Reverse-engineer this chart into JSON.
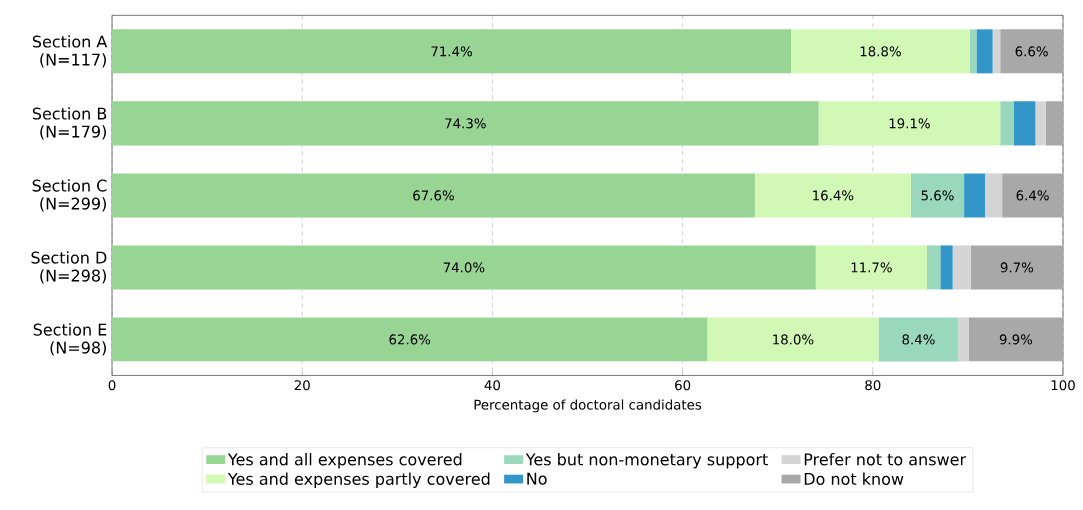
{
  "chart_data": {
    "type": "bar",
    "orientation": "horizontal",
    "stacked": true,
    "categories": [
      "Section A\n(N=117)",
      "Section B\n(N=179)",
      "Section C\n(N=299)",
      "Section D\n(N=298)",
      "Section E\n(N=98)"
    ],
    "xlabel": "Percentage of doctoral candidates",
    "xlim": [
      0,
      100
    ],
    "xticks": [
      0,
      20,
      40,
      60,
      80,
      100
    ],
    "grid": "x",
    "legend": "bottom",
    "series": [
      {
        "name": "Yes and all expenses covered",
        "color": "#98d594",
        "values": [
          71.4,
          74.3,
          67.6,
          74.0,
          62.6
        ],
        "value_labels": [
          "71.4%",
          "74.3%",
          "67.6%",
          "74.0%",
          "62.6%"
        ]
      },
      {
        "name": "Yes and expenses partly covered",
        "color": "#d1f9b5",
        "values": [
          18.8,
          19.1,
          16.4,
          11.7,
          18.0
        ],
        "value_labels": [
          "18.8%",
          "19.1%",
          "16.4%",
          "11.7%",
          "18.0%"
        ]
      },
      {
        "name": "Yes but non-monetary support",
        "color": "#99d8bd",
        "values": [
          0.7,
          1.4,
          5.6,
          1.4,
          8.4
        ],
        "value_labels": [
          null,
          null,
          "5.6%",
          null,
          "8.4%"
        ]
      },
      {
        "name": "No",
        "color": "#3396c8",
        "values": [
          1.7,
          2.3,
          2.2,
          1.3,
          0
        ],
        "value_labels": [
          null,
          null,
          null,
          null,
          null
        ]
      },
      {
        "name": "Prefer not to answer",
        "color": "#d4d4d4",
        "values": [
          0.8,
          1.1,
          1.8,
          1.9,
          1.1
        ],
        "value_labels": [
          null,
          null,
          null,
          null,
          null
        ]
      },
      {
        "name": "Do not know",
        "color": "#a8a8a8",
        "values": [
          6.6,
          1.8,
          6.4,
          9.7,
          9.9
        ],
        "value_labels": [
          "6.6%",
          null,
          "6.4%",
          "9.7%",
          "9.9%"
        ]
      }
    ]
  }
}
